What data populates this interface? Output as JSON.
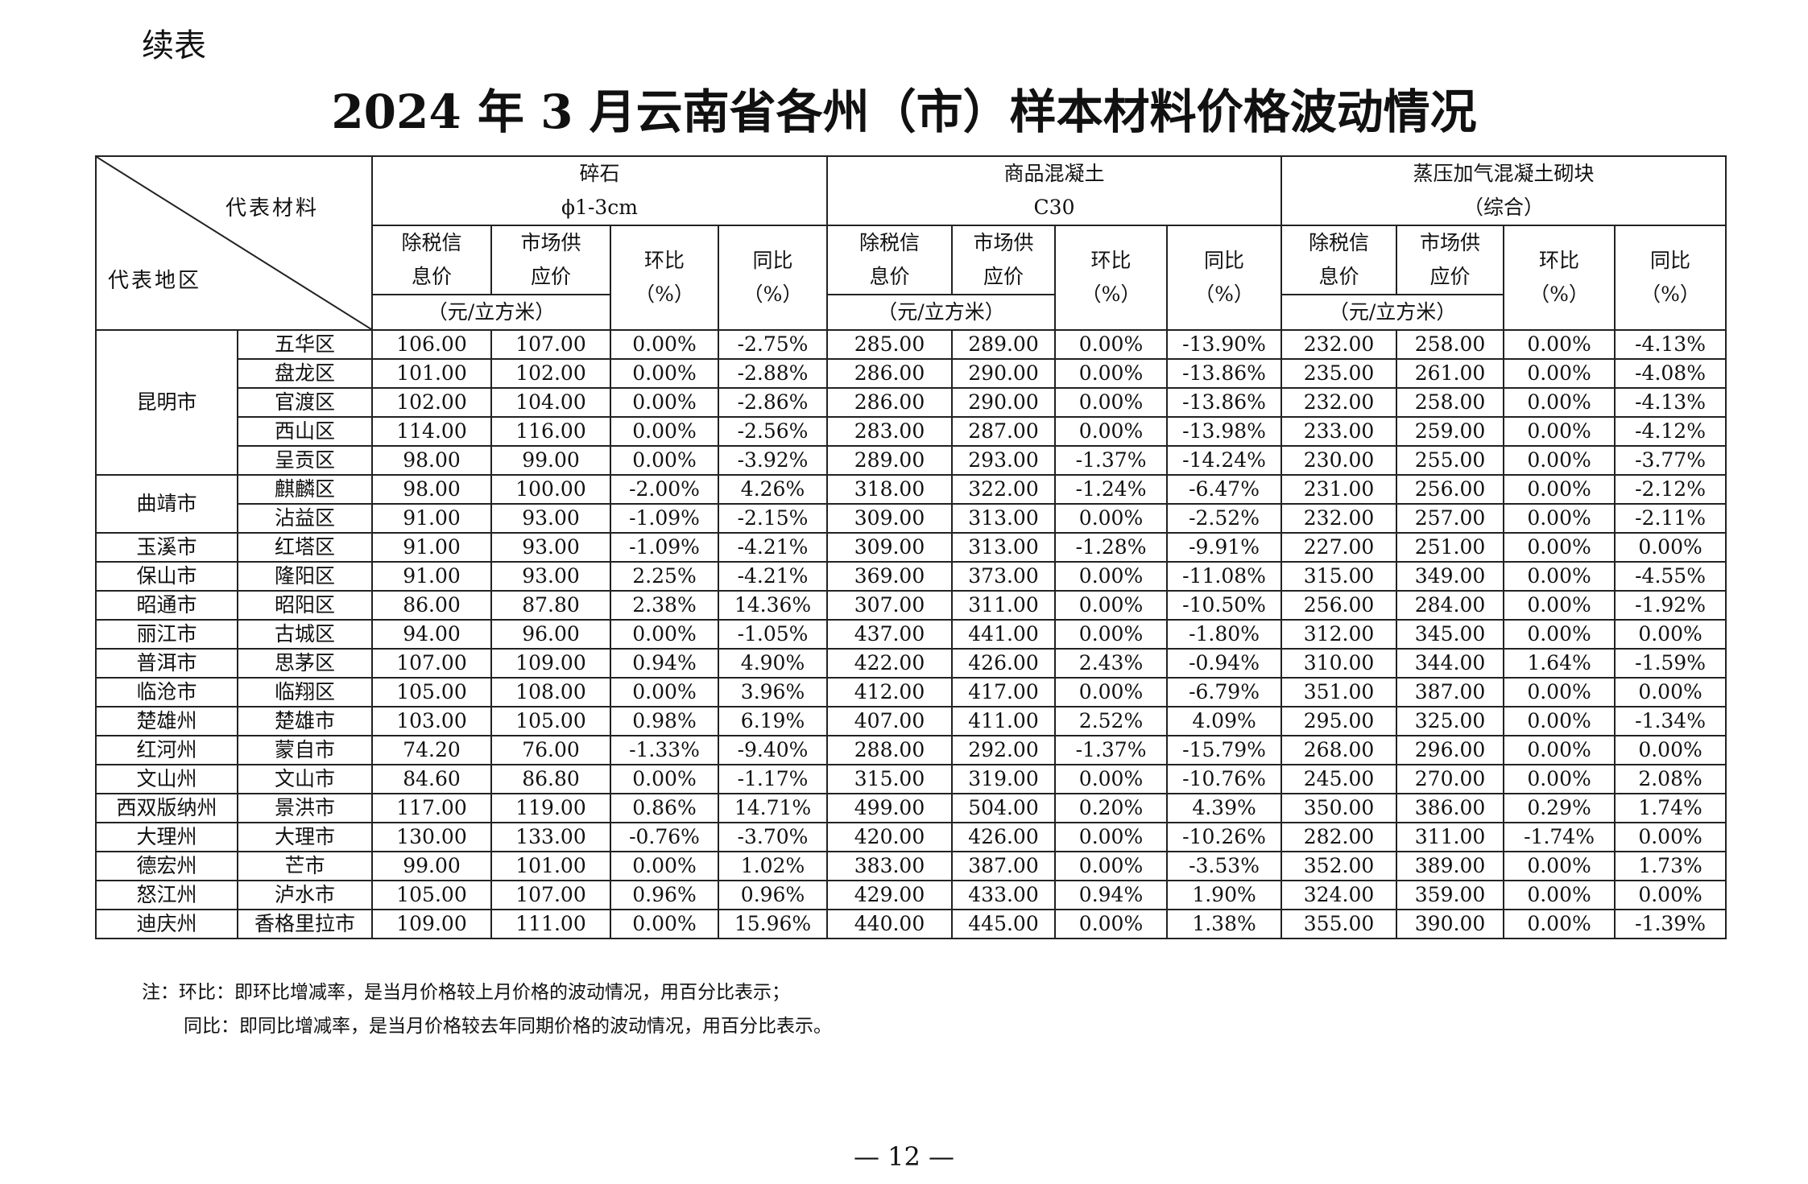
{
  "continued_label": "续表",
  "title": "2024 年 3 月云南省各州（市）样本材料价格波动情况",
  "header": {
    "material_label": "代表材料",
    "region_label": "代表地区",
    "groups": [
      {
        "name": "碎石",
        "spec": "ϕ1-3cm"
      },
      {
        "name": "商品混凝土",
        "spec": "C30"
      },
      {
        "name": "蒸压加气混凝土砌块",
        "spec": "（综合）"
      }
    ],
    "col_tax": [
      "除税信",
      "息价"
    ],
    "col_market": [
      "市场供",
      "应价"
    ],
    "col_mom": [
      "环比",
      "（%）"
    ],
    "col_yoy": [
      "同比",
      "（%）"
    ],
    "unit": "（元/立方米）"
  },
  "rows": [
    {
      "city": "昆明市",
      "span": 5,
      "district": "五华区",
      "v": [
        "106.00",
        "107.00",
        "0.00%",
        "-2.75%",
        "285.00",
        "289.00",
        "0.00%",
        "-13.90%",
        "232.00",
        "258.00",
        "0.00%",
        "-4.13%"
      ]
    },
    {
      "district": "盘龙区",
      "v": [
        "101.00",
        "102.00",
        "0.00%",
        "-2.88%",
        "286.00",
        "290.00",
        "0.00%",
        "-13.86%",
        "235.00",
        "261.00",
        "0.00%",
        "-4.08%"
      ]
    },
    {
      "district": "官渡区",
      "v": [
        "102.00",
        "104.00",
        "0.00%",
        "-2.86%",
        "286.00",
        "290.00",
        "0.00%",
        "-13.86%",
        "232.00",
        "258.00",
        "0.00%",
        "-4.13%"
      ]
    },
    {
      "district": "西山区",
      "v": [
        "114.00",
        "116.00",
        "0.00%",
        "-2.56%",
        "283.00",
        "287.00",
        "0.00%",
        "-13.98%",
        "233.00",
        "259.00",
        "0.00%",
        "-4.12%"
      ]
    },
    {
      "district": "呈贡区",
      "v": [
        "98.00",
        "99.00",
        "0.00%",
        "-3.92%",
        "289.00",
        "293.00",
        "-1.37%",
        "-14.24%",
        "230.00",
        "255.00",
        "0.00%",
        "-3.77%"
      ]
    },
    {
      "city": "曲靖市",
      "span": 2,
      "district": "麒麟区",
      "v": [
        "98.00",
        "100.00",
        "-2.00%",
        "4.26%",
        "318.00",
        "322.00",
        "-1.24%",
        "-6.47%",
        "231.00",
        "256.00",
        "0.00%",
        "-2.12%"
      ]
    },
    {
      "district": "沾益区",
      "v": [
        "91.00",
        "93.00",
        "-1.09%",
        "-2.15%",
        "309.00",
        "313.00",
        "0.00%",
        "-2.52%",
        "232.00",
        "257.00",
        "0.00%",
        "-2.11%"
      ]
    },
    {
      "city": "玉溪市",
      "span": 1,
      "district": "红塔区",
      "v": [
        "91.00",
        "93.00",
        "-1.09%",
        "-4.21%",
        "309.00",
        "313.00",
        "-1.28%",
        "-9.91%",
        "227.00",
        "251.00",
        "0.00%",
        "0.00%"
      ]
    },
    {
      "city": "保山市",
      "span": 1,
      "district": "隆阳区",
      "v": [
        "91.00",
        "93.00",
        "2.25%",
        "-4.21%",
        "369.00",
        "373.00",
        "0.00%",
        "-11.08%",
        "315.00",
        "349.00",
        "0.00%",
        "-4.55%"
      ]
    },
    {
      "city": "昭通市",
      "span": 1,
      "district": "昭阳区",
      "v": [
        "86.00",
        "87.80",
        "2.38%",
        "14.36%",
        "307.00",
        "311.00",
        "0.00%",
        "-10.50%",
        "256.00",
        "284.00",
        "0.00%",
        "-1.92%"
      ]
    },
    {
      "city": "丽江市",
      "span": 1,
      "district": "古城区",
      "v": [
        "94.00",
        "96.00",
        "0.00%",
        "-1.05%",
        "437.00",
        "441.00",
        "0.00%",
        "-1.80%",
        "312.00",
        "345.00",
        "0.00%",
        "0.00%"
      ]
    },
    {
      "city": "普洱市",
      "span": 1,
      "district": "思茅区",
      "v": [
        "107.00",
        "109.00",
        "0.94%",
        "4.90%",
        "422.00",
        "426.00",
        "2.43%",
        "-0.94%",
        "310.00",
        "344.00",
        "1.64%",
        "-1.59%"
      ]
    },
    {
      "city": "临沧市",
      "span": 1,
      "district": "临翔区",
      "v": [
        "105.00",
        "108.00",
        "0.00%",
        "3.96%",
        "412.00",
        "417.00",
        "0.00%",
        "-6.79%",
        "351.00",
        "387.00",
        "0.00%",
        "0.00%"
      ]
    },
    {
      "city": "楚雄州",
      "span": 1,
      "district": "楚雄市",
      "v": [
        "103.00",
        "105.00",
        "0.98%",
        "6.19%",
        "407.00",
        "411.00",
        "2.52%",
        "4.09%",
        "295.00",
        "325.00",
        "0.00%",
        "-1.34%"
      ]
    },
    {
      "city": "红河州",
      "span": 1,
      "district": "蒙自市",
      "v": [
        "74.20",
        "76.00",
        "-1.33%",
        "-9.40%",
        "288.00",
        "292.00",
        "-1.37%",
        "-15.79%",
        "268.00",
        "296.00",
        "0.00%",
        "0.00%"
      ]
    },
    {
      "city": "文山州",
      "span": 1,
      "district": "文山市",
      "v": [
        "84.60",
        "86.80",
        "0.00%",
        "-1.17%",
        "315.00",
        "319.00",
        "0.00%",
        "-10.76%",
        "245.00",
        "270.00",
        "0.00%",
        "2.08%"
      ]
    },
    {
      "city": "西双版纳州",
      "span": 1,
      "district": "景洪市",
      "v": [
        "117.00",
        "119.00",
        "0.86%",
        "14.71%",
        "499.00",
        "504.00",
        "0.20%",
        "4.39%",
        "350.00",
        "386.00",
        "0.29%",
        "1.74%"
      ]
    },
    {
      "city": "大理州",
      "span": 1,
      "district": "大理市",
      "v": [
        "130.00",
        "133.00",
        "-0.76%",
        "-3.70%",
        "420.00",
        "426.00",
        "0.00%",
        "-10.26%",
        "282.00",
        "311.00",
        "-1.74%",
        "0.00%"
      ]
    },
    {
      "city": "德宏州",
      "span": 1,
      "district": "芒市",
      "v": [
        "99.00",
        "101.00",
        "0.00%",
        "1.02%",
        "383.00",
        "387.00",
        "0.00%",
        "-3.53%",
        "352.00",
        "389.00",
        "0.00%",
        "1.73%"
      ]
    },
    {
      "city": "怒江州",
      "span": 1,
      "district": "泸水市",
      "v": [
        "105.00",
        "107.00",
        "0.96%",
        "0.96%",
        "429.00",
        "433.00",
        "0.94%",
        "1.90%",
        "324.00",
        "359.00",
        "0.00%",
        "0.00%"
      ]
    },
    {
      "city": "迪庆州",
      "span": 1,
      "district": "香格里拉市",
      "v": [
        "109.00",
        "111.00",
        "0.00%",
        "15.96%",
        "440.00",
        "445.00",
        "0.00%",
        "1.38%",
        "355.00",
        "390.00",
        "0.00%",
        "-1.39%"
      ]
    }
  ],
  "notes": [
    "注：环比：即环比增减率，是当月价格较上月价格的波动情况，用百分比表示；",
    "同比：即同比增减率，是当月价格较去年同期价格的波动情况，用百分比表示。"
  ],
  "page_number": "— 12 —"
}
